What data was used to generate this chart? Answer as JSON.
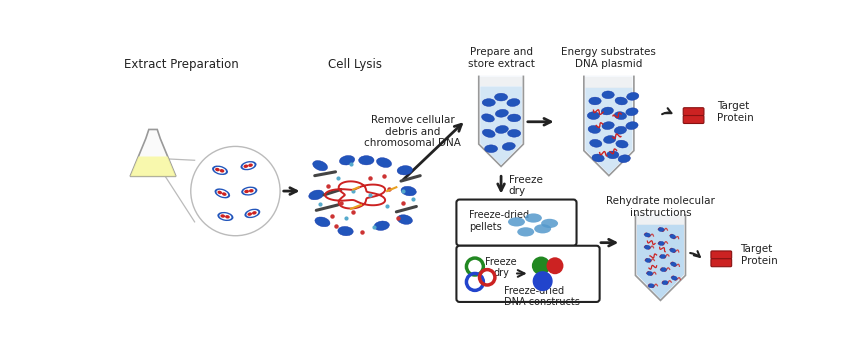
{
  "bg_color": "#ffffff",
  "figsize": [
    8.5,
    3.41
  ],
  "dpi": 100,
  "labels": {
    "extract_prep": "Extract Preparation",
    "cell_lysis": "Cell Lysis",
    "remove_debris": "Remove cellular\ndebris and\nchromosomal DNA",
    "prepare_store": "Prepare and\nstore extract",
    "energy_subs": "Energy substrates\nDNA plasmid",
    "freeze_dry_arrow": "Freeze\ndry",
    "freeze_dried_pellets": "Freeze-dried\npellets",
    "freeze_dry_box": "Freeze\ndry",
    "freeze_dried_constructs": "Freeze-dried\nDNA constructs",
    "rehydrate": "Rehydrate molecular\ninstructions",
    "target_protein1": "Target\nProtein",
    "target_protein2": "Target\nProtein"
  },
  "colors": {
    "blue_oval": "#2255bb",
    "light_blue_fill": "#d0e8f8",
    "tube_outline": "#999999",
    "red": "#cc2222",
    "dark_red": "#991111",
    "green": "#228822",
    "blue_ring": "#2244cc",
    "pellet_blue": "#5599cc",
    "orange": "#e8a020",
    "gray_debris": "#555555",
    "cyan_dot": "#44aacc",
    "red_dot": "#cc3333",
    "yellow_liquid": "#f8f8a0"
  }
}
